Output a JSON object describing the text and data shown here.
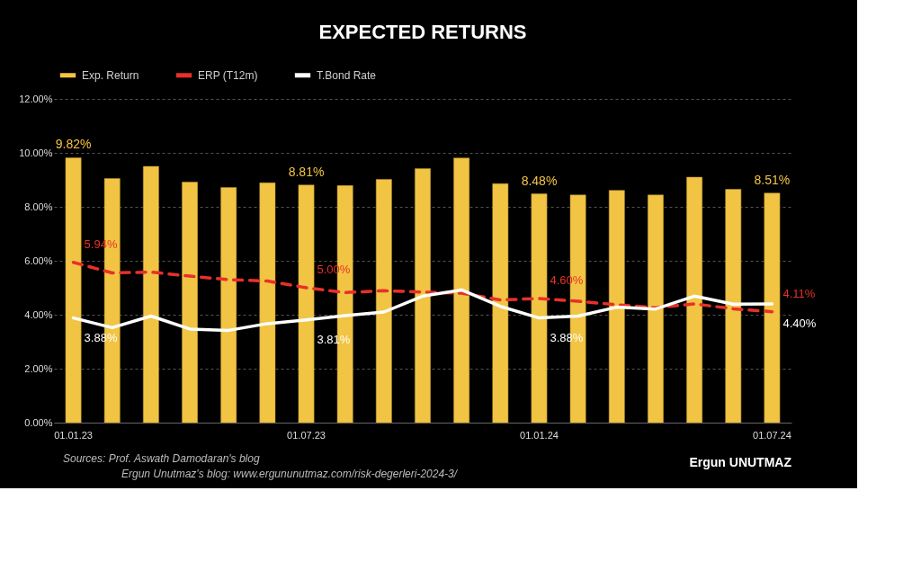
{
  "chart_data": {
    "type": "bar",
    "title": "EXPECTED RETURNS",
    "categories": [
      "01.01.23",
      null,
      null,
      null,
      null,
      null,
      "01.07.23",
      null,
      null,
      null,
      null,
      null,
      "01.01.24",
      null,
      null,
      null,
      null,
      null,
      "01.07.24"
    ],
    "series": [
      {
        "name": "Exp. Return",
        "color": "#f2c443",
        "values": [
          9.82,
          9.05,
          9.5,
          8.92,
          8.72,
          8.89,
          8.81,
          8.79,
          9.02,
          9.42,
          9.81,
          8.86,
          8.48,
          8.44,
          8.61,
          8.44,
          9.1,
          8.65,
          8.51
        ],
        "value_labels": [
          "9.82%",
          null,
          null,
          null,
          null,
          null,
          "8.81%",
          null,
          null,
          null,
          null,
          null,
          "8.48%",
          null,
          null,
          null,
          null,
          null,
          "8.51%"
        ]
      },
      {
        "name": "ERP (T12m)",
        "type": "line",
        "line_style": "dashed",
        "color": "#e8302a",
        "values": [
          5.94,
          5.55,
          5.58,
          5.43,
          5.3,
          5.25,
          5.0,
          4.82,
          4.89,
          4.84,
          4.8,
          4.55,
          4.6,
          4.5,
          4.37,
          4.26,
          4.4,
          4.22,
          4.11
        ],
        "value_labels": [
          "5.94%",
          null,
          null,
          null,
          null,
          null,
          "5.00%",
          null,
          null,
          null,
          null,
          null,
          "4.60%",
          null,
          null,
          null,
          null,
          null,
          "4.11%"
        ]
      },
      {
        "name": "T.Bond Rate",
        "type": "line",
        "line_style": "solid",
        "color": "#ffffff",
        "values": [
          3.88,
          3.52,
          3.95,
          3.47,
          3.42,
          3.67,
          3.81,
          3.97,
          4.1,
          4.69,
          4.92,
          4.31,
          3.88,
          3.95,
          4.28,
          4.21,
          4.69,
          4.39,
          4.4
        ],
        "value_labels": [
          "3.88%",
          null,
          null,
          null,
          null,
          null,
          "3.81%",
          null,
          null,
          null,
          null,
          null,
          "3.88%",
          null,
          null,
          null,
          null,
          null,
          "4.40%"
        ]
      }
    ],
    "ylim": [
      0,
      12
    ],
    "yticks": [
      {
        "value": 0,
        "label": "0.00%"
      },
      {
        "value": 2,
        "label": "2.00%"
      },
      {
        "value": 4,
        "label": "4.00%"
      },
      {
        "value": 6,
        "label": "6.00%"
      },
      {
        "value": 8,
        "label": "8.00%"
      },
      {
        "value": 10,
        "label": "10.00%"
      },
      {
        "value": 12,
        "label": "12.00%"
      }
    ],
    "grid": "y",
    "legend": "top left",
    "annotations": [
      "Sources: Prof. Aswath Damodaran's blog",
      "Ergun Unutmaz's blog: www.ergununutmaz.com/risk-degerleri-2024-3/",
      "Ergun UNUTMAZ"
    ]
  }
}
